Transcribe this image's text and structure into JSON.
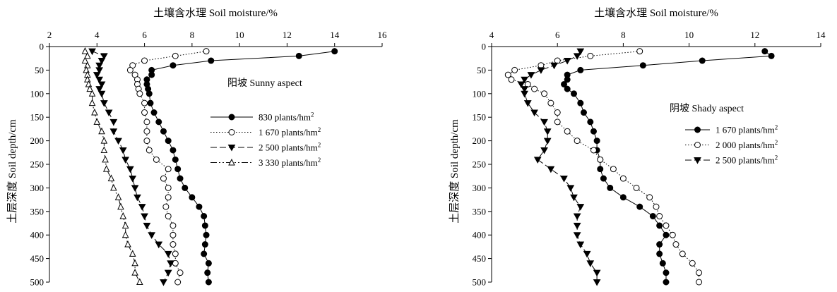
{
  "chart_data": [
    {
      "type": "line",
      "title": "土壤含水理 Soil moisture/%",
      "xlabel": "土壤含水理 Soil moisture/%",
      "ylabel": "土层深度 Soil depth/cm",
      "xlim": [
        2,
        16
      ],
      "ylim": [
        0,
        500
      ],
      "x_axis_position": "top",
      "y_inverted": true,
      "x_ticks": [
        "2",
        "4",
        "6",
        "8",
        "10",
        "12",
        "14",
        "16"
      ],
      "y_ticks": [
        "0",
        "50",
        "100",
        "150",
        "200",
        "250",
        "300",
        "350",
        "400",
        "450",
        "500"
      ],
      "annotation": "阳坡 Sunny aspect",
      "grid": false,
      "legend_position": "right-middle",
      "series": [
        {
          "name": "830 plants/hm",
          "name_sup": "2",
          "line": "solid",
          "marker": "filled-circle",
          "points": [
            [
              14.0,
              10
            ],
            [
              12.5,
              20
            ],
            [
              8.8,
              30
            ],
            [
              7.2,
              40
            ],
            [
              6.3,
              50
            ],
            [
              6.3,
              60
            ],
            [
              6.1,
              70
            ],
            [
              6.1,
              80
            ],
            [
              6.15,
              90
            ],
            [
              6.2,
              100
            ],
            [
              6.25,
              120
            ],
            [
              6.4,
              140
            ],
            [
              6.6,
              160
            ],
            [
              6.8,
              180
            ],
            [
              7.0,
              200
            ],
            [
              7.2,
              220
            ],
            [
              7.3,
              240
            ],
            [
              7.4,
              260
            ],
            [
              7.5,
              280
            ],
            [
              7.7,
              300
            ],
            [
              8.0,
              320
            ],
            [
              8.3,
              340
            ],
            [
              8.5,
              360
            ],
            [
              8.55,
              380
            ],
            [
              8.6,
              400
            ],
            [
              8.55,
              420
            ],
            [
              8.5,
              440
            ],
            [
              8.7,
              460
            ],
            [
              8.65,
              480
            ],
            [
              8.7,
              500
            ]
          ]
        },
        {
          "name": "1 670 plants/hm",
          "name_sup": "2",
          "line": "dotted",
          "marker": "open-circle",
          "points": [
            [
              8.6,
              10
            ],
            [
              7.3,
              20
            ],
            [
              6.0,
              30
            ],
            [
              5.5,
              40
            ],
            [
              5.4,
              50
            ],
            [
              5.6,
              60
            ],
            [
              5.7,
              70
            ],
            [
              5.7,
              80
            ],
            [
              5.75,
              90
            ],
            [
              5.8,
              100
            ],
            [
              6.0,
              120
            ],
            [
              6.0,
              140
            ],
            [
              6.1,
              160
            ],
            [
              6.1,
              180
            ],
            [
              6.1,
              200
            ],
            [
              6.2,
              220
            ],
            [
              6.5,
              240
            ],
            [
              7.0,
              260
            ],
            [
              6.8,
              280
            ],
            [
              7.0,
              300
            ],
            [
              7.0,
              320
            ],
            [
              6.9,
              340
            ],
            [
              7.0,
              360
            ],
            [
              7.2,
              380
            ],
            [
              7.2,
              400
            ],
            [
              7.2,
              420
            ],
            [
              7.3,
              440
            ],
            [
              7.3,
              460
            ],
            [
              7.5,
              480
            ],
            [
              7.4,
              500
            ]
          ]
        },
        {
          "name": "2 500 plants/hm",
          "name_sup": "2",
          "line": "dashed",
          "marker": "filled-triangle-down",
          "points": [
            [
              3.8,
              10
            ],
            [
              4.3,
              20
            ],
            [
              4.2,
              30
            ],
            [
              4.1,
              40
            ],
            [
              4.1,
              50
            ],
            [
              4.0,
              60
            ],
            [
              4.1,
              70
            ],
            [
              4.2,
              80
            ],
            [
              4.1,
              90
            ],
            [
              4.2,
              100
            ],
            [
              4.3,
              120
            ],
            [
              4.5,
              140
            ],
            [
              4.7,
              160
            ],
            [
              4.7,
              180
            ],
            [
              4.9,
              200
            ],
            [
              5.1,
              220
            ],
            [
              5.2,
              240
            ],
            [
              5.4,
              260
            ],
            [
              5.5,
              280
            ],
            [
              5.6,
              300
            ],
            [
              5.7,
              320
            ],
            [
              5.9,
              340
            ],
            [
              6.0,
              360
            ],
            [
              6.1,
              380
            ],
            [
              6.3,
              400
            ],
            [
              6.6,
              420
            ],
            [
              7.0,
              440
            ],
            [
              7.1,
              460
            ],
            [
              7.0,
              480
            ],
            [
              6.8,
              500
            ]
          ]
        },
        {
          "name": "3 330 plants/hm",
          "name_sup": "2",
          "line": "dash-dot-dot",
          "marker": "open-triangle-up",
          "points": [
            [
              3.5,
              10
            ],
            [
              3.6,
              20
            ],
            [
              3.5,
              30
            ],
            [
              3.6,
              40
            ],
            [
              3.55,
              50
            ],
            [
              3.6,
              60
            ],
            [
              3.6,
              70
            ],
            [
              3.65,
              80
            ],
            [
              3.7,
              90
            ],
            [
              3.8,
              100
            ],
            [
              3.8,
              120
            ],
            [
              3.9,
              140
            ],
            [
              4.0,
              160
            ],
            [
              4.2,
              180
            ],
            [
              4.3,
              200
            ],
            [
              4.3,
              220
            ],
            [
              4.35,
              240
            ],
            [
              4.4,
              260
            ],
            [
              4.6,
              280
            ],
            [
              4.7,
              300
            ],
            [
              4.9,
              320
            ],
            [
              5.0,
              340
            ],
            [
              5.1,
              360
            ],
            [
              5.2,
              380
            ],
            [
              5.2,
              400
            ],
            [
              5.3,
              420
            ],
            [
              5.5,
              440
            ],
            [
              5.6,
              460
            ],
            [
              5.6,
              480
            ],
            [
              5.8,
              500
            ]
          ]
        }
      ]
    },
    {
      "type": "line",
      "title": "土壤含水理 Soil moisture/%",
      "xlabel": "土壤含水理 Soil moisture/%",
      "ylabel": "土层深度 Soil depth/cm",
      "xlim": [
        4,
        14
      ],
      "ylim": [
        0,
        500
      ],
      "x_axis_position": "top",
      "y_inverted": true,
      "x_ticks": [
        "4",
        "6",
        "8",
        "10",
        "12",
        "14"
      ],
      "y_ticks": [
        "0",
        "50",
        "100",
        "150",
        "200",
        "250",
        "300",
        "350",
        "400",
        "450",
        "500"
      ],
      "annotation": "阴坡 Shady aspect",
      "grid": false,
      "legend_position": "right-middle",
      "series": [
        {
          "name": "1 670 plants/hm",
          "name_sup": "2",
          "line": "solid",
          "marker": "filled-circle",
          "points": [
            [
              12.3,
              10
            ],
            [
              12.5,
              20
            ],
            [
              10.4,
              30
            ],
            [
              8.6,
              40
            ],
            [
              6.7,
              50
            ],
            [
              6.3,
              60
            ],
            [
              6.3,
              70
            ],
            [
              6.2,
              80
            ],
            [
              6.3,
              90
            ],
            [
              6.5,
              100
            ],
            [
              6.7,
              120
            ],
            [
              6.8,
              140
            ],
            [
              7.0,
              160
            ],
            [
              7.1,
              180
            ],
            [
              7.2,
              200
            ],
            [
              7.2,
              220
            ],
            [
              7.3,
              240
            ],
            [
              7.3,
              260
            ],
            [
              7.4,
              280
            ],
            [
              7.6,
              300
            ],
            [
              8.0,
              320
            ],
            [
              8.5,
              340
            ],
            [
              8.9,
              360
            ],
            [
              9.1,
              380
            ],
            [
              9.3,
              400
            ],
            [
              9.1,
              420
            ],
            [
              9.1,
              440
            ],
            [
              9.2,
              460
            ],
            [
              9.3,
              480
            ],
            [
              9.3,
              500
            ]
          ]
        },
        {
          "name": "2 000 plants/hm",
          "name_sup": "2",
          "line": "dotted",
          "marker": "open-circle",
          "points": [
            [
              8.5,
              10
            ],
            [
              7.0,
              20
            ],
            [
              6.0,
              30
            ],
            [
              5.5,
              40
            ],
            [
              4.7,
              50
            ],
            [
              4.5,
              60
            ],
            [
              4.6,
              70
            ],
            [
              5.1,
              80
            ],
            [
              5.3,
              90
            ],
            [
              5.6,
              100
            ],
            [
              5.8,
              120
            ],
            [
              6.0,
              140
            ],
            [
              6.0,
              160
            ],
            [
              6.3,
              180
            ],
            [
              6.6,
              200
            ],
            [
              7.1,
              220
            ],
            [
              7.3,
              240
            ],
            [
              7.7,
              260
            ],
            [
              8.0,
              280
            ],
            [
              8.4,
              300
            ],
            [
              8.8,
              320
            ],
            [
              9.0,
              340
            ],
            [
              9.1,
              360
            ],
            [
              9.3,
              380
            ],
            [
              9.5,
              400
            ],
            [
              9.6,
              420
            ],
            [
              9.8,
              440
            ],
            [
              10.1,
              460
            ],
            [
              10.3,
              480
            ],
            [
              10.3,
              500
            ]
          ]
        },
        {
          "name": "2 500 plants/hm",
          "name_sup": "2",
          "line": "dashed",
          "marker": "filled-triangle-down",
          "points": [
            [
              6.7,
              10
            ],
            [
              6.6,
              20
            ],
            [
              6.3,
              30
            ],
            [
              5.9,
              40
            ],
            [
              5.5,
              50
            ],
            [
              5.2,
              60
            ],
            [
              5.0,
              70
            ],
            [
              4.9,
              80
            ],
            [
              5.0,
              90
            ],
            [
              5.0,
              100
            ],
            [
              5.1,
              120
            ],
            [
              5.3,
              140
            ],
            [
              5.6,
              160
            ],
            [
              5.7,
              180
            ],
            [
              5.7,
              200
            ],
            [
              5.6,
              220
            ],
            [
              5.4,
              240
            ],
            [
              5.8,
              260
            ],
            [
              6.2,
              280
            ],
            [
              6.4,
              300
            ],
            [
              6.5,
              320
            ],
            [
              6.7,
              340
            ],
            [
              6.6,
              360
            ],
            [
              6.6,
              380
            ],
            [
              6.6,
              400
            ],
            [
              6.7,
              420
            ],
            [
              6.9,
              440
            ],
            [
              7.0,
              460
            ],
            [
              7.2,
              480
            ],
            [
              7.2,
              500
            ]
          ]
        }
      ]
    }
  ]
}
